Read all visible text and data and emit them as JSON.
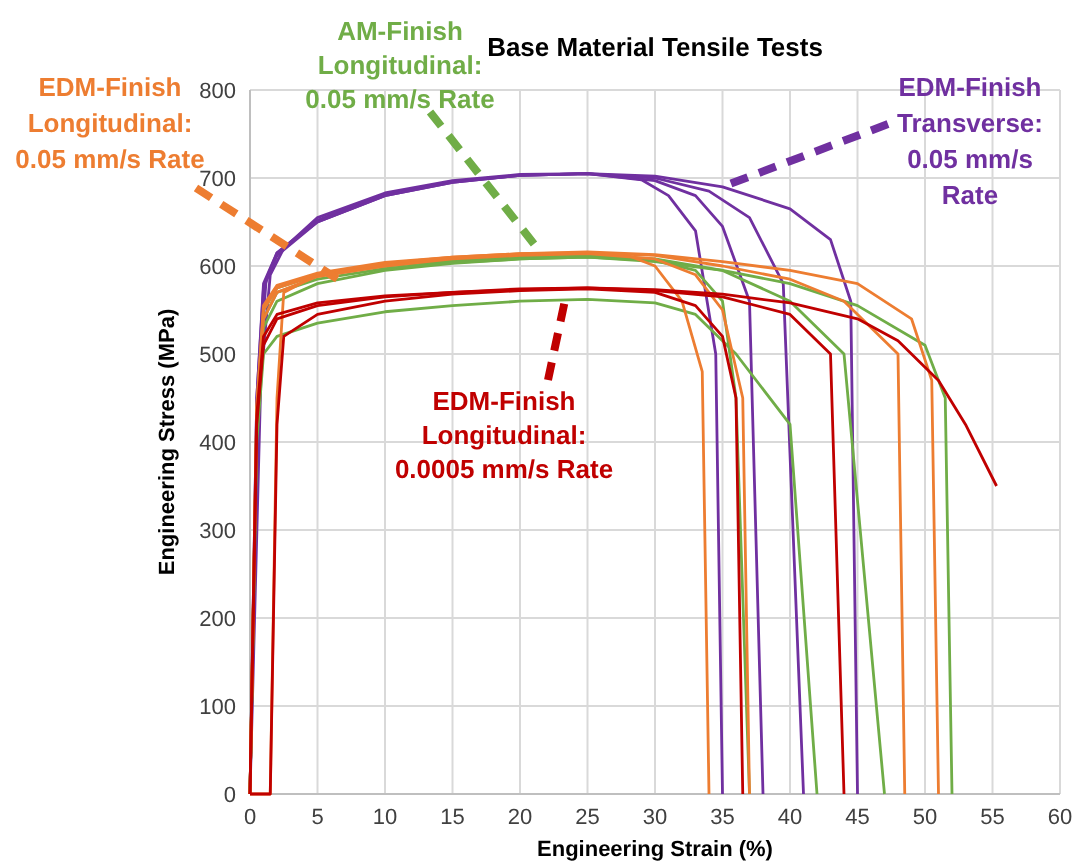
{
  "chart_data": {
    "type": "line",
    "title": "Base Material Tensile Tests",
    "xlabel": "Engineering Strain (%)",
    "ylabel": "Engineering Stress (MPa)",
    "annotations": [
      {
        "text": "EDM-Finish\nLongitudinal:\n0.05 mm/s Rate",
        "x": 7,
        "y": 580
      },
      {
        "text": "AM-Finish\nLongitudinal:\n0.05 mm/s Rate",
        "x": 21.5,
        "y": 616
      },
      {
        "text": "EDM-Finish\nTransverse:\n0.05 mm/s\nRate",
        "x": 35,
        "y": 690
      },
      {
        "text": "EDM-Finish\nLongitudinal:\n0.0005 mm/s Rate",
        "x": 23.4,
        "y": 566
      }
    ],
    "xlim": [
      0,
      60
    ],
    "xticks": [
      0,
      5,
      10,
      15,
      20,
      25,
      30,
      35,
      40,
      45,
      50,
      55,
      60
    ],
    "ylim": [
      0,
      800
    ],
    "yticks": [
      0,
      100,
      200,
      300,
      400,
      500,
      600,
      700,
      800
    ],
    "grid": true,
    "series": [
      {
        "color": "#7030a0",
        "x": [
          0,
          0.5,
          1,
          2,
          5,
          10,
          15,
          20,
          25,
          29,
          31,
          33,
          34.5,
          35
        ],
        "values": [
          0,
          450,
          580,
          615,
          650,
          680,
          695,
          703,
          705,
          698,
          680,
          640,
          500,
          0
        ]
      },
      {
        "color": "#7030a0",
        "x": [
          0,
          0.8,
          1.5,
          2.5,
          5,
          10,
          15,
          20,
          25,
          30,
          33,
          35,
          37,
          38
        ],
        "values": [
          0,
          470,
          590,
          620,
          655,
          683,
          697,
          704,
          705,
          697,
          680,
          645,
          560,
          0
        ]
      },
      {
        "color": "#7030a0",
        "x": [
          0,
          0.6,
          1.2,
          2,
          5,
          10,
          15,
          20,
          25,
          30,
          34,
          37,
          39.5,
          41
        ],
        "values": [
          0,
          460,
          585,
          615,
          652,
          682,
          696,
          703,
          705,
          700,
          685,
          655,
          580,
          0
        ]
      },
      {
        "color": "#7030a0",
        "x": [
          0,
          0.5,
          1,
          2,
          5,
          10,
          15,
          20,
          25,
          30,
          35,
          40,
          43,
          44.5,
          45
        ],
        "values": [
          0,
          450,
          575,
          612,
          650,
          680,
          695,
          703,
          705,
          702,
          690,
          665,
          630,
          560,
          0
        ]
      },
      {
        "color": "#70ad47",
        "x": [
          0,
          0.5,
          1,
          2,
          5,
          10,
          15,
          20,
          25,
          30,
          33,
          35,
          36,
          37
        ],
        "values": [
          0,
          420,
          530,
          560,
          580,
          595,
          603,
          608,
          610,
          606,
          595,
          560,
          450,
          0
        ]
      },
      {
        "color": "#70ad47",
        "x": [
          0,
          0.5,
          1,
          2,
          5,
          10,
          15,
          20,
          25,
          30,
          33,
          36,
          40,
          42
        ],
        "values": [
          0,
          400,
          500,
          520,
          535,
          548,
          555,
          560,
          562,
          558,
          545,
          500,
          420,
          0
        ]
      },
      {
        "color": "#70ad47",
        "x": [
          0,
          0.5,
          1,
          2,
          5,
          10,
          15,
          20,
          25,
          30,
          35,
          40,
          44,
          47
        ],
        "values": [
          0,
          430,
          550,
          575,
          590,
          600,
          606,
          610,
          612,
          608,
          595,
          560,
          500,
          0
        ]
      },
      {
        "color": "#70ad47",
        "x": [
          0,
          0.5,
          1,
          2,
          5,
          10,
          15,
          20,
          25,
          30,
          35,
          40,
          45,
          50,
          51.5,
          52
        ],
        "values": [
          0,
          420,
          540,
          570,
          585,
          597,
          604,
          608,
          610,
          605,
          595,
          580,
          555,
          510,
          450,
          0
        ]
      },
      {
        "color": "#ed7d31",
        "x": [
          0,
          1.5,
          2,
          2.5,
          5,
          10,
          15,
          20,
          25,
          28,
          30,
          32,
          33.5,
          34
        ],
        "values": [
          0,
          0,
          450,
          570,
          590,
          603,
          610,
          614,
          615,
          612,
          600,
          560,
          480,
          0
        ]
      },
      {
        "color": "#ed7d31",
        "x": [
          0,
          0.5,
          1,
          2,
          5,
          10,
          15,
          20,
          25,
          30,
          33,
          35,
          36.5,
          37
        ],
        "values": [
          0,
          430,
          540,
          570,
          588,
          600,
          608,
          612,
          614,
          608,
          590,
          550,
          450,
          0
        ]
      },
      {
        "color": "#ed7d31",
        "x": [
          0,
          0.5,
          1,
          2,
          5,
          10,
          15,
          20,
          25,
          30,
          35,
          40,
          44,
          48,
          48.5
        ],
        "values": [
          0,
          440,
          550,
          575,
          590,
          602,
          609,
          613,
          615,
          612,
          600,
          585,
          560,
          500,
          0
        ]
      },
      {
        "color": "#ed7d31",
        "x": [
          0,
          0.5,
          1,
          2,
          5,
          10,
          15,
          20,
          25,
          30,
          35,
          40,
          45,
          49,
          50.5,
          51
        ],
        "values": [
          0,
          440,
          555,
          578,
          592,
          604,
          610,
          614,
          616,
          613,
          605,
          595,
          580,
          540,
          470,
          0
        ]
      },
      {
        "color": "#c00000",
        "x": [
          0,
          1.5,
          2,
          2.5,
          5,
          10,
          15,
          20,
          25,
          30,
          33,
          35,
          36,
          36.5
        ],
        "values": [
          0,
          0,
          420,
          520,
          545,
          560,
          568,
          572,
          574,
          570,
          555,
          520,
          450,
          0
        ]
      },
      {
        "color": "#c00000",
        "x": [
          0,
          0.5,
          1,
          2,
          5,
          10,
          15,
          20,
          25,
          30,
          35,
          40,
          43,
          44
        ],
        "values": [
          0,
          430,
          520,
          545,
          558,
          566,
          570,
          574,
          575,
          572,
          565,
          545,
          500,
          0
        ]
      },
      {
        "color": "#c00000",
        "x": [
          0,
          0.5,
          1,
          2,
          5,
          10,
          15,
          20,
          25,
          30,
          35,
          40,
          45,
          48,
          51,
          53,
          55.3
        ],
        "values": [
          0,
          420,
          510,
          540,
          555,
          565,
          570,
          573,
          575,
          573,
          568,
          558,
          540,
          515,
          470,
          420,
          350
        ]
      }
    ]
  }
}
